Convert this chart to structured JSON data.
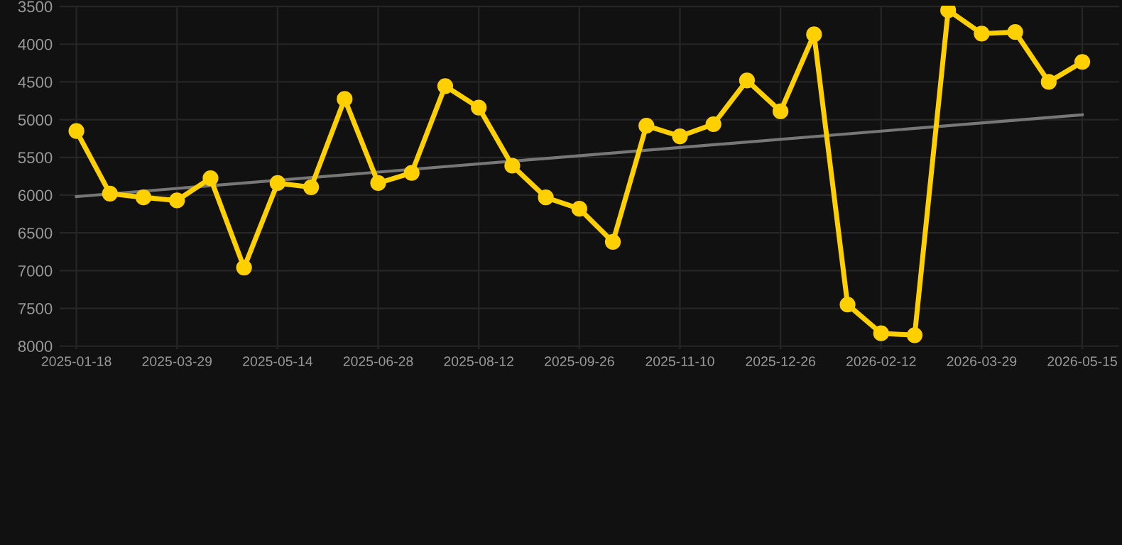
{
  "chart_data": {
    "type": "line",
    "categories": [
      "2025-01-18",
      null,
      null,
      "2025-03-29",
      null,
      null,
      "2025-05-14",
      null,
      null,
      "2025-06-28",
      null,
      null,
      "2025-08-12",
      null,
      null,
      "2025-09-26",
      null,
      null,
      "2025-11-10",
      null,
      null,
      "2025-12-26",
      null,
      null,
      "2026-02-12",
      null,
      null,
      "2026-03-29",
      null,
      null,
      "2026-05-15"
    ],
    "series": [
      {
        "color": "#ffd000",
        "marker": "circle",
        "values": [
          5150,
          5980,
          6030,
          6070,
          5775,
          6960,
          5840,
          5895,
          4726,
          5840,
          5705,
          4555,
          4840,
          5610,
          6030,
          6180,
          6620,
          5080,
          5220,
          5060,
          4480,
          4890,
          3870,
          7450,
          7830,
          7855,
          3550,
          3860,
          3840,
          4500,
          4235
        ]
      },
      {
        "type": "line",
        "color": "#777777",
        "marker": "none",
        "values": [
          6020,
          null,
          null,
          null,
          null,
          null,
          null,
          null,
          null,
          null,
          null,
          null,
          null,
          null,
          null,
          null,
          null,
          null,
          null,
          null,
          null,
          null,
          null,
          null,
          null,
          null,
          null,
          null,
          null,
          null,
          4935
        ]
      }
    ],
    "ylim": [
      8040,
      3490
    ],
    "yticks": [
      3500,
      4000,
      4500,
      5000,
      5500,
      6000,
      6500,
      7000,
      7500,
      8000
    ],
    "grid": true
  }
}
